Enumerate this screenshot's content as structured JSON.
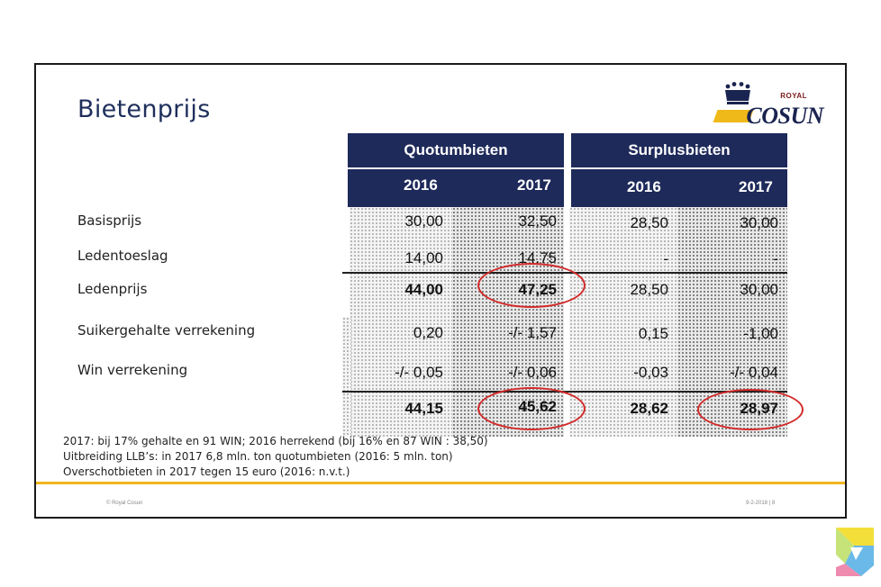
{
  "slide": {
    "title": "Bietenprijs",
    "logo": {
      "royal": "ROYAL",
      "brand": "COSUN"
    },
    "groups": [
      {
        "label": "Quotumbieten"
      },
      {
        "label": "Surplusbieten"
      }
    ],
    "years": [
      "2016",
      "2017",
      "2016",
      "2017"
    ],
    "rows": [
      {
        "label": "Basisprijs",
        "values": [
          "30,00",
          "32,50",
          "28,50",
          "30,00"
        ]
      },
      {
        "label": "Ledentoeslag",
        "values": [
          "14,00",
          "14,75",
          "-",
          "-"
        ]
      },
      {
        "label": "Ledenprijs",
        "values": [
          "44,00",
          "47,25",
          "28,50",
          "30,00"
        ]
      },
      {
        "label": "Suikergehalte verrekening",
        "values": [
          "0,20",
          "-/- 1,57",
          "0,15",
          "-1,00"
        ]
      },
      {
        "label": "Win verrekening",
        "values": [
          "-/- 0,05",
          "-/- 0,06",
          "-0,03",
          "-/- 0,04"
        ]
      },
      {
        "label": "",
        "values": [
          "44,15",
          "45,62",
          "28,62",
          "28,97"
        ]
      }
    ],
    "notes": [
      "2017: bij 17% gehalte en 91 WIN; 2016 herrekend (bij 16% en 87 WIN : 38,50)",
      "Uitbreiding LLB’s: in 2017 6,8 mln. ton quotumbieten (2016: 5 mln. ton)",
      "Overschotbieten in 2017 tegen 15 euro  (2016: n.v.t.)"
    ],
    "footer_left": "© Royal Cosun",
    "footer_right": "9-2-2018  |   8"
  },
  "colors": {
    "header_bg": "#1e2a5a",
    "title": "#1f2f5c",
    "accent_gold": "#f1b51c",
    "highlight_ring": "#d42a2a"
  },
  "icons": {
    "crown": "crown-icon",
    "corner": "watermark-logo-icon"
  }
}
